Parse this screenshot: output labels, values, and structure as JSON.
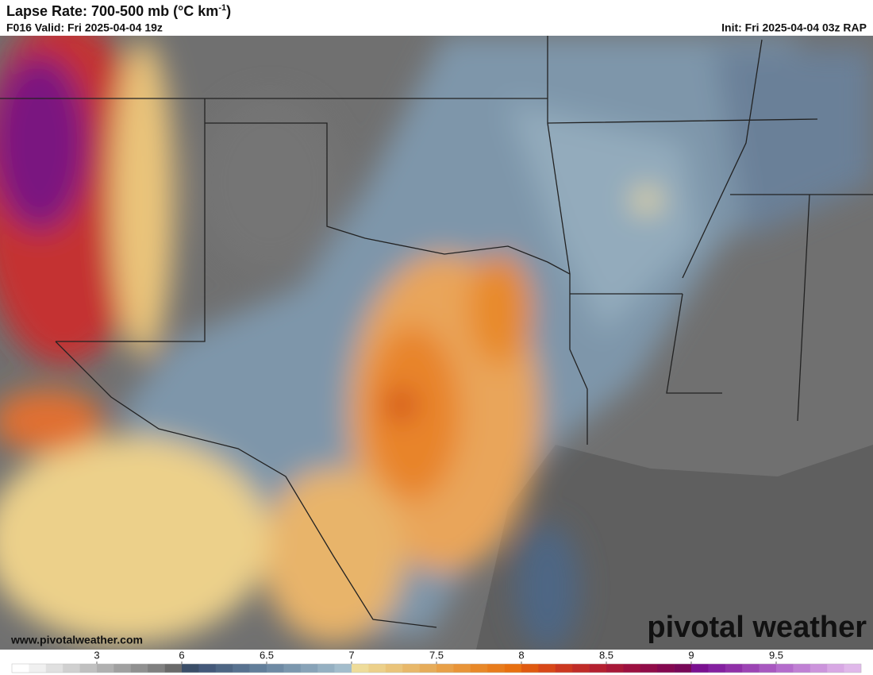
{
  "header": {
    "title": [
      "Lapse Rate: 700-500 mb (°C km",
      "-1",
      ")"
    ],
    "valid": "F016 Valid: Fri 2025-04-04 19z",
    "init": "Init: Fri 2025-04-04 03z RAP"
  },
  "watermark": {
    "brand": "pivotal weather",
    "url": "www.pivotalweather.com"
  },
  "colorbar": {
    "ticks": [
      3,
      6,
      6.5,
      7,
      7.5,
      8,
      8.5,
      9,
      9.5
    ],
    "colors": [
      "#ffffff",
      "#f0f0f0",
      "#e0e0e0",
      "#d0d0d0",
      "#c0c0c0",
      "#b0b0b0",
      "#a0a0a0",
      "#909090",
      "#808080",
      "#6a6a6a",
      "#3b4e68",
      "#44597a",
      "#4e6684",
      "#587290",
      "#627e9a",
      "#6e8aa4",
      "#7b97ae",
      "#88a3b8",
      "#95b0c2",
      "#a3bdcc",
      "#eedc9a",
      "#ecd08a",
      "#eac47a",
      "#e8b86a",
      "#e6ac5a",
      "#e8a048",
      "#e89438",
      "#e88828",
      "#e87c1c",
      "#e87010",
      "#e05a10",
      "#d84818",
      "#cc3820",
      "#c02c28",
      "#b42030",
      "#a81838",
      "#9c1040",
      "#900c48",
      "#840850",
      "#780858",
      "#7a1090",
      "#8420a0",
      "#9030a8",
      "#9c44b4",
      "#a858c0",
      "#b46ccc",
      "#c080d4",
      "#cc94dc",
      "#d8a8e4",
      "#e0b8ea"
    ]
  }
}
